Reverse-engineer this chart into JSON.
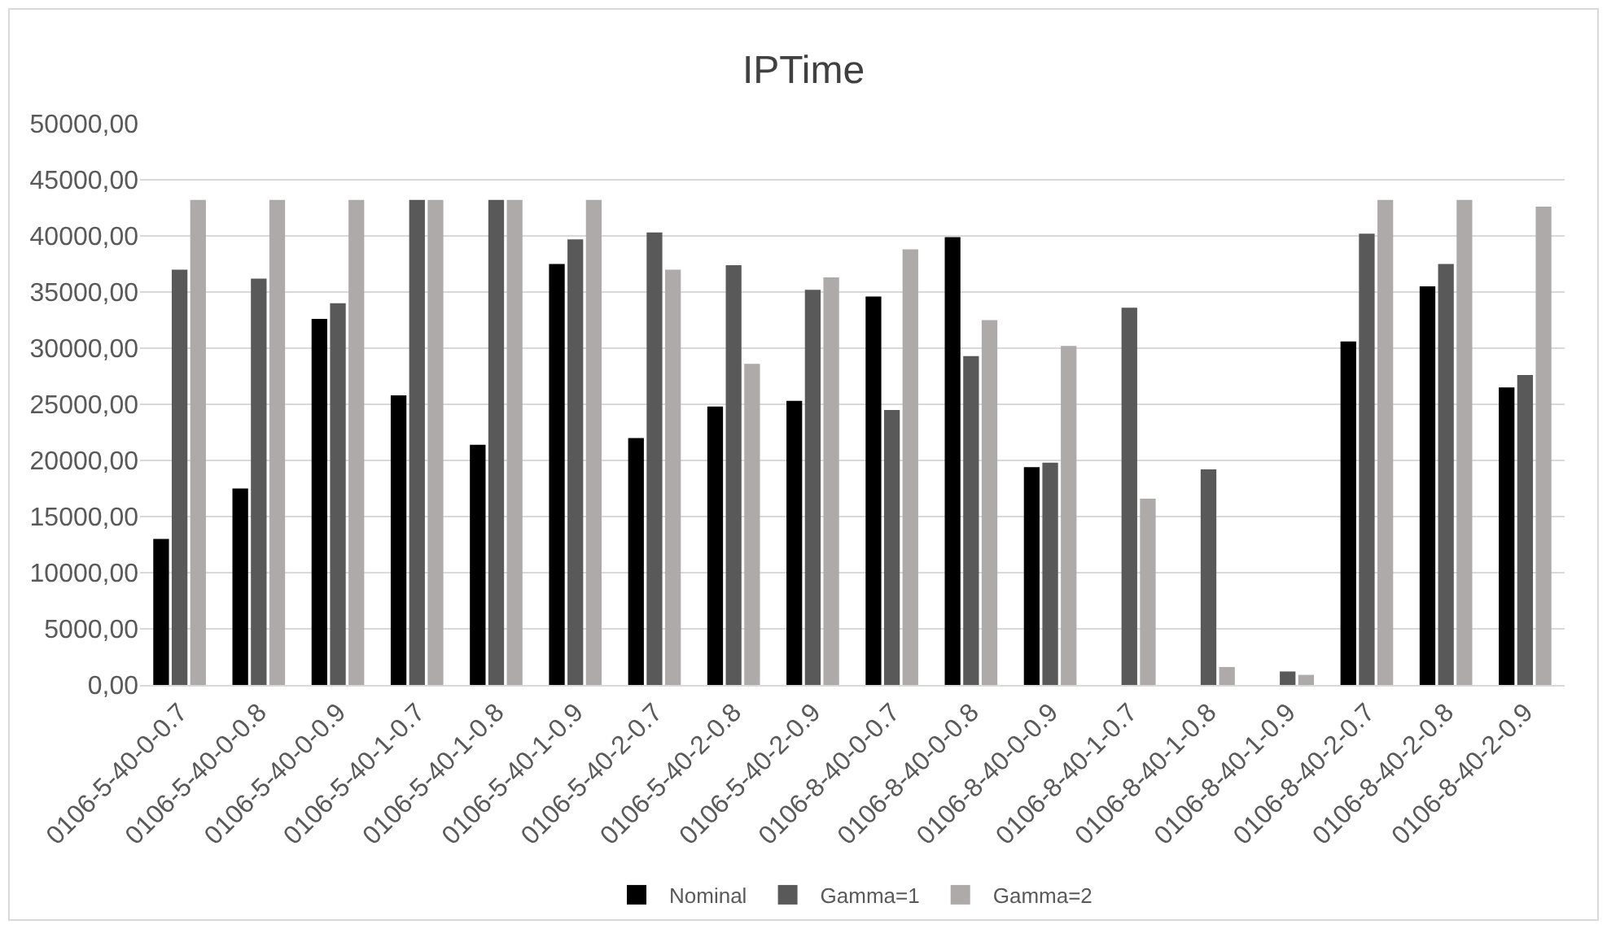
{
  "chart_data": {
    "type": "bar",
    "title": "IPTime",
    "categories": [
      "0106-5-40-0-0.7",
      "0106-5-40-0-0.8",
      "0106-5-40-0-0.9",
      "0106-5-40-1-0.7",
      "0106-5-40-1-0.8",
      "0106-5-40-1-0.9",
      "0106-5-40-2-0.7",
      "0106-5-40-2-0.8",
      "0106-5-40-2-0.9",
      "0106-8-40-0-0.7",
      "0106-8-40-0-0.8",
      "0106-8-40-0-0.9",
      "0106-8-40-1-0.7",
      "0106-8-40-1-0.8",
      "0106-8-40-1-0.9",
      "0106-8-40-2-0.7",
      "0106-8-40-2-0.8",
      "0106-8-40-2-0.9"
    ],
    "series": [
      {
        "name": "Nominal",
        "color": "#000000",
        "values": [
          13000,
          17500,
          32600,
          25800,
          21400,
          37500,
          22000,
          24800,
          25300,
          34600,
          39900,
          19400,
          0,
          0,
          0,
          30600,
          35500,
          26500
        ]
      },
      {
        "name": "Gamma=1",
        "color": "#595959",
        "values": [
          37000,
          36200,
          34000,
          43200,
          43200,
          39700,
          40300,
          37400,
          35200,
          24500,
          29300,
          19800,
          33600,
          19200,
          1200,
          40200,
          37500,
          27600
        ]
      },
      {
        "name": "Gamma=2",
        "color": "#aeaaaa",
        "values": [
          43200,
          43200,
          43200,
          43200,
          43200,
          43200,
          37000,
          28600,
          36300,
          38800,
          32500,
          30200,
          16600,
          1600,
          900,
          43200,
          43200,
          42600
        ]
      }
    ],
    "ylim": [
      0,
      50000
    ],
    "yticks": [
      {
        "value": 0,
        "label": "0,00"
      },
      {
        "value": 5000,
        "label": "5000,00"
      },
      {
        "value": 10000,
        "label": "10000,00"
      },
      {
        "value": 15000,
        "label": "15000,00"
      },
      {
        "value": 20000,
        "label": "20000,00"
      },
      {
        "value": 25000,
        "label": "25000,00"
      },
      {
        "value": 30000,
        "label": "30000,00"
      },
      {
        "value": 35000,
        "label": "35000,00"
      },
      {
        "value": 40000,
        "label": "40000,00"
      },
      {
        "value": 45000,
        "label": "45000,00"
      },
      {
        "value": 50000,
        "label": "50000,00"
      }
    ],
    "grid": "y",
    "legend": "bottom"
  }
}
